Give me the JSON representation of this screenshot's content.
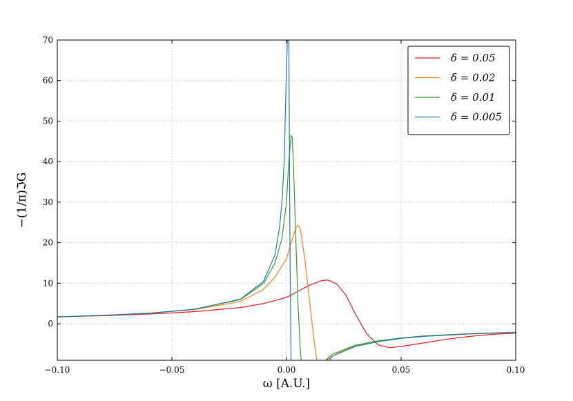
{
  "chart_data": {
    "type": "line",
    "title": "",
    "xlabel": "ω [A.U.]",
    "ylabel": "−(1/π)ℑG",
    "xlim": [
      -0.1,
      0.1
    ],
    "ylim": [
      -9,
      70
    ],
    "x_ticks": [
      -0.1,
      -0.05,
      0.0,
      0.05,
      0.1
    ],
    "x_tick_labels": [
      "−0.10",
      "−0.05",
      "0.00",
      "0.05",
      "0.10"
    ],
    "y_ticks": [
      0,
      10,
      20,
      30,
      40,
      50,
      60,
      70
    ],
    "y_tick_labels": [
      "0",
      "10",
      "20",
      "30",
      "40",
      "50",
      "60",
      "70"
    ],
    "grid": true,
    "legend_position": "top-right",
    "series": [
      {
        "name": "δ = 0.05",
        "color": "#e41a1c",
        "x": [
          -0.1,
          -0.08,
          -0.06,
          -0.04,
          -0.02,
          -0.01,
          0.0,
          0.005,
          0.01,
          0.015,
          0.018,
          0.022,
          0.026,
          0.03,
          0.035,
          0.04,
          0.045,
          0.05,
          0.06,
          0.07,
          0.08,
          0.09,
          0.1
        ],
        "values": [
          1.7,
          2.0,
          2.4,
          3.0,
          4.0,
          5.0,
          6.5,
          8.0,
          9.5,
          10.6,
          10.8,
          9.8,
          7.0,
          2.5,
          -2.5,
          -5.2,
          -5.9,
          -5.6,
          -4.7,
          -3.8,
          -3.1,
          -2.6,
          -2.3
        ]
      },
      {
        "name": "δ = 0.02",
        "color": "#ff7f0e",
        "x": [
          -0.1,
          -0.08,
          -0.06,
          -0.04,
          -0.02,
          -0.01,
          -0.005,
          0.0,
          0.002,
          0.004,
          0.005,
          0.006,
          0.008,
          0.01,
          0.012,
          0.013,
          0.0135,
          0.016,
          0.02,
          0.025,
          0.03,
          0.04,
          0.05,
          0.06,
          0.08,
          0.1
        ],
        "values": [
          1.7,
          2.1,
          2.6,
          3.5,
          5.5,
          8.5,
          11.5,
          16.0,
          20.0,
          23.5,
          24.3,
          23.5,
          16.0,
          6.0,
          -4.0,
          -8.0,
          -9.5,
          -9.5,
          -8.0,
          -6.5,
          -5.5,
          -4.2,
          -3.5,
          -3.0,
          -2.4,
          -2.1
        ]
      },
      {
        "name": "δ = 0.01",
        "color": "#2ca02c",
        "x": [
          -0.1,
          -0.08,
          -0.06,
          -0.04,
          -0.02,
          -0.01,
          -0.005,
          -0.002,
          0.0,
          0.001,
          0.002,
          0.0025,
          0.003,
          0.004,
          0.005,
          0.006,
          0.0065,
          0.016,
          0.02,
          0.03,
          0.04,
          0.05,
          0.06,
          0.08,
          0.1
        ],
        "values": [
          1.7,
          2.1,
          2.6,
          3.6,
          6.0,
          10.0,
          15.0,
          21.0,
          30.0,
          40.0,
          46.5,
          46.0,
          40.0,
          22.0,
          5.0,
          -6.0,
          -9.5,
          -9.5,
          -7.5,
          -5.3,
          -4.2,
          -3.5,
          -3.0,
          -2.5,
          -2.1
        ]
      },
      {
        "name": "δ = 0.005",
        "color": "#1f77b4",
        "x": [
          -0.1,
          -0.08,
          -0.06,
          -0.04,
          -0.02,
          -0.01,
          -0.005,
          -0.003,
          -0.002,
          -0.001,
          -0.0005,
          0.0,
          0.0005,
          0.001,
          0.0015,
          0.002,
          0.018,
          0.02,
          0.03,
          0.04,
          0.05,
          0.06,
          0.08,
          0.1
        ],
        "values": [
          1.7,
          2.1,
          2.6,
          3.6,
          6.1,
          10.5,
          17.0,
          24.0,
          30.0,
          40.0,
          52.0,
          63.0,
          72.0,
          72.0,
          20.0,
          -9.5,
          -9.5,
          -8.0,
          -5.6,
          -4.4,
          -3.6,
          -3.1,
          -2.5,
          -2.1
        ]
      }
    ]
  }
}
